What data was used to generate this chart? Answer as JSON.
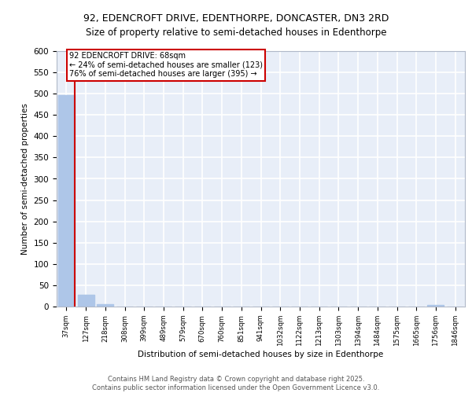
{
  "title_line1": "92, EDENCROFT DRIVE, EDENTHORPE, DONCASTER, DN3 2RD",
  "title_line2": "Size of property relative to semi-detached houses in Edenthorpe",
  "xlabel": "Distribution of semi-detached houses by size in Edenthorpe",
  "ylabel": "Number of semi-detached properties",
  "categories": [
    "37sqm",
    "127sqm",
    "218sqm",
    "308sqm",
    "399sqm",
    "489sqm",
    "579sqm",
    "670sqm",
    "760sqm",
    "851sqm",
    "941sqm",
    "1032sqm",
    "1122sqm",
    "1213sqm",
    "1303sqm",
    "1394sqm",
    "1484sqm",
    "1575sqm",
    "1665sqm",
    "1756sqm",
    "1846sqm"
  ],
  "values": [
    496,
    28,
    5,
    0,
    0,
    0,
    0,
    0,
    0,
    0,
    0,
    0,
    0,
    0,
    0,
    0,
    0,
    0,
    0,
    4,
    0
  ],
  "bar_color": "#aec6e8",
  "annotation_line1": "92 EDENCROFT DRIVE: 68sqm",
  "annotation_line2": "← 24% of semi-detached houses are smaller (123)",
  "annotation_line3": "76% of semi-detached houses are larger (395) →",
  "annotation_box_color": "#cc0000",
  "property_line_color": "#cc0000",
  "property_bar_index": 0,
  "ylim": [
    0,
    600
  ],
  "yticks": [
    0,
    50,
    100,
    150,
    200,
    250,
    300,
    350,
    400,
    450,
    500,
    550,
    600
  ],
  "background_color": "#e8eef8",
  "grid_color": "#ffffff",
  "footer_line1": "Contains HM Land Registry data © Crown copyright and database right 2025.",
  "footer_line2": "Contains public sector information licensed under the Open Government Licence v3.0."
}
